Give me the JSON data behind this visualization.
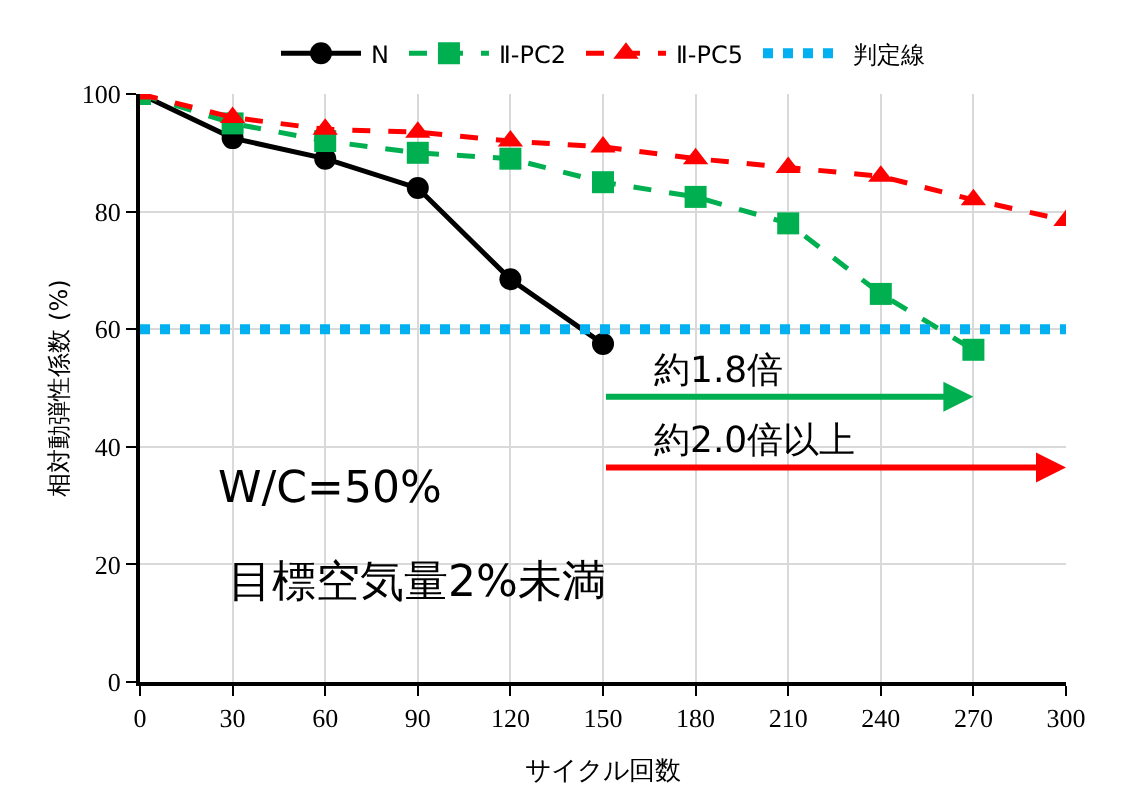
{
  "chart_data": {
    "type": "line",
    "xlabel": "サイクル回数",
    "ylabel": "相対動弾性係数 (%)",
    "x": [
      0,
      30,
      60,
      90,
      120,
      150,
      180,
      210,
      240,
      270,
      300
    ],
    "xlim": [
      0,
      300
    ],
    "xticks": [
      0,
      30,
      60,
      90,
      120,
      150,
      180,
      210,
      240,
      270,
      300
    ],
    "ylim": [
      0,
      100
    ],
    "yticks": [
      0,
      20,
      40,
      60,
      80,
      100
    ],
    "grid": true,
    "legend": "top",
    "series": [
      {
        "name": "N",
        "color": "#000000",
        "marker": "circle",
        "line_style": "solid",
        "values": [
          100,
          92.5,
          89,
          84,
          68.5,
          57.5,
          null,
          null,
          null,
          null,
          null
        ]
      },
      {
        "name": "Ⅱ-PC2",
        "color": "#00b050",
        "marker": "square",
        "line_style": "dashed",
        "values": [
          100,
          95,
          92,
          90,
          89,
          85,
          82.5,
          78,
          66,
          56.5,
          null
        ]
      },
      {
        "name": "Ⅱ-PC5",
        "color": "#ff0000",
        "marker": "triangle",
        "line_style": "dashed",
        "values": [
          100,
          96,
          94,
          93.5,
          92,
          91,
          89,
          87.5,
          86,
          82,
          78.5
        ]
      },
      {
        "name": "判定線",
        "color": "#00b0f0",
        "marker": "none",
        "line_style": "dotted",
        "x": [
          0,
          300
        ],
        "values": [
          60,
          60
        ]
      }
    ],
    "annotations": [
      "約1.8倍",
      "約2.0倍以上",
      "W/C=50%",
      "目標空気量2%未満"
    ]
  }
}
